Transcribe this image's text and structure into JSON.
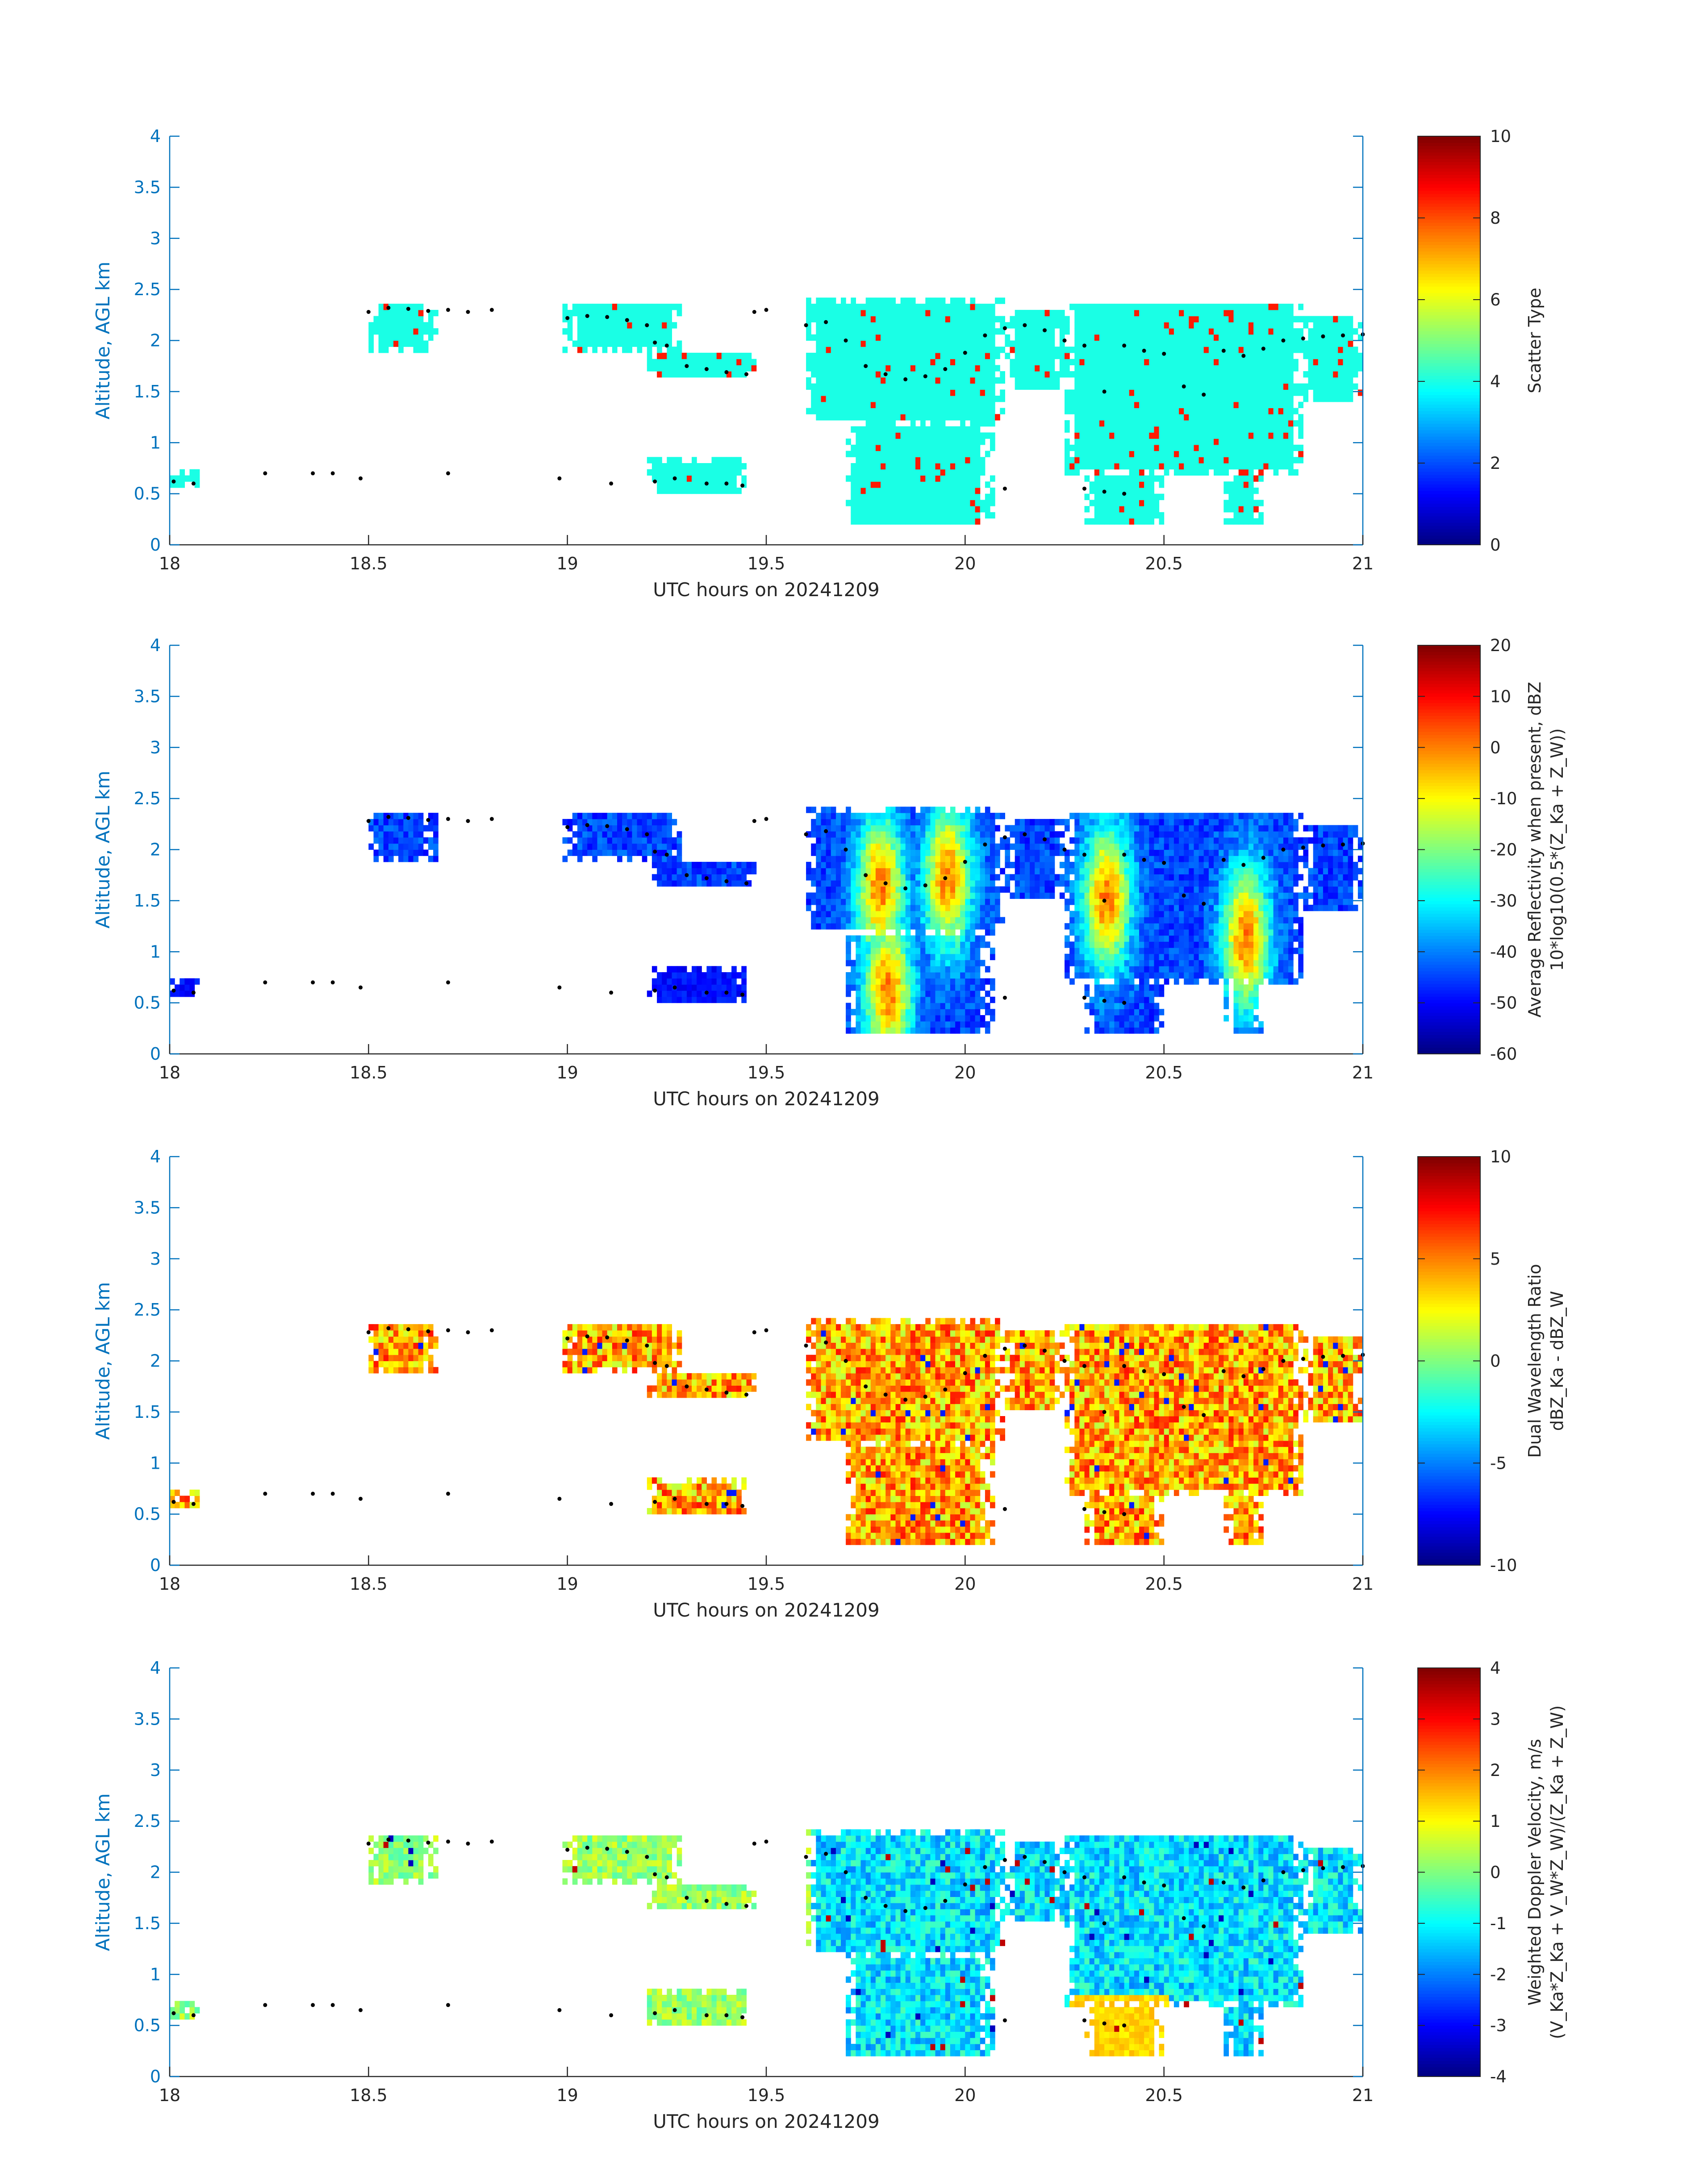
{
  "chart_data": [
    {
      "type": "heatmap",
      "xlabel": "UTC hours on 20241209",
      "ylabel": "Altitude, AGL km",
      "xlim": [
        18,
        21
      ],
      "ylim": [
        0,
        4
      ],
      "x_ticks": [
        "18",
        "18.5",
        "19",
        "19.5",
        "20",
        "20.5",
        "21"
      ],
      "y_ticks": [
        "0",
        "0.5",
        "1",
        "1.5",
        "2",
        "2.5",
        "3",
        "3.5",
        "4"
      ],
      "colorbar": {
        "label_lines": [
          "Scatter Type"
        ],
        "range": [
          0,
          10
        ],
        "ticks": [
          "0",
          "2",
          "4",
          "6",
          "8",
          "10"
        ],
        "colormap": "jet"
      },
      "field": "scatter_type",
      "dominant_value": 4,
      "secondary_value": 8.5
    },
    {
      "type": "heatmap",
      "xlabel": "UTC hours on 20241209",
      "ylabel": "Altitude, AGL km",
      "xlim": [
        18,
        21
      ],
      "ylim": [
        0,
        4
      ],
      "x_ticks": [
        "18",
        "18.5",
        "19",
        "19.5",
        "20",
        "20.5",
        "21"
      ],
      "y_ticks": [
        "0",
        "0.5",
        "1",
        "1.5",
        "2",
        "2.5",
        "3",
        "3.5",
        "4"
      ],
      "colorbar": {
        "label_lines": [
          "Average Reflectivity when present, dBZ",
          "10*log10(0.5*(Z_Ka + Z_W))"
        ],
        "range": [
          -60,
          20
        ],
        "ticks": [
          "-60",
          "-50",
          "-40",
          "-30",
          "-20",
          "-10",
          "0",
          "10",
          "20"
        ],
        "colormap": "jet"
      },
      "field": "reflectivity"
    },
    {
      "type": "heatmap",
      "xlabel": "UTC hours on 20241209",
      "ylabel": "Altitude, AGL km",
      "xlim": [
        18,
        21
      ],
      "ylim": [
        0,
        4
      ],
      "x_ticks": [
        "18",
        "18.5",
        "19",
        "19.5",
        "20",
        "20.5",
        "21"
      ],
      "y_ticks": [
        "0",
        "0.5",
        "1",
        "1.5",
        "2",
        "2.5",
        "3",
        "3.5",
        "4"
      ],
      "colorbar": {
        "label_lines": [
          "Dual Wavelength Ratio",
          "dBZ_Ka - dBZ_W"
        ],
        "range": [
          -10,
          10
        ],
        "ticks": [
          "-10",
          "-5",
          "0",
          "5",
          "10"
        ],
        "colormap": "jet"
      },
      "field": "dwr"
    },
    {
      "type": "heatmap",
      "xlabel": "UTC hours on 20241209",
      "ylabel": "Altitude, AGL km",
      "xlim": [
        18,
        21
      ],
      "ylim": [
        0,
        4
      ],
      "x_ticks": [
        "18",
        "18.5",
        "19",
        "19.5",
        "20",
        "20.5",
        "21"
      ],
      "y_ticks": [
        "0",
        "0.5",
        "1",
        "1.5",
        "2",
        "2.5",
        "3",
        "3.5",
        "4"
      ],
      "colorbar": {
        "label_lines": [
          "Weighted Doppler Velocity, m/s",
          "(V_Ka*Z_Ka + V_W*Z_W)/(Z_Ka + Z_W)"
        ],
        "range": [
          -4,
          4
        ],
        "ticks": [
          "-4",
          "-3",
          "-2",
          "-1",
          "0",
          "1",
          "2",
          "3",
          "4"
        ],
        "colormap": "jet"
      },
      "field": "doppler_velocity"
    }
  ],
  "echo_regions_km": [
    {
      "x0": 18.5,
      "x1": 18.67,
      "y0": 1.9,
      "y1": 2.38
    },
    {
      "x0": 18.99,
      "x1": 19.29,
      "y0": 1.9,
      "y1": 2.38
    },
    {
      "x0": 19.2,
      "x1": 19.48,
      "y0": 1.62,
      "y1": 1.9
    },
    {
      "x0": 19.6,
      "x1": 20.1,
      "y0": 1.2,
      "y1": 2.4
    },
    {
      "x0": 19.7,
      "x1": 20.07,
      "y0": 0.2,
      "y1": 1.2
    },
    {
      "x0": 20.1,
      "x1": 20.25,
      "y0": 1.5,
      "y1": 2.33
    },
    {
      "x0": 20.25,
      "x1": 20.85,
      "y0": 0.7,
      "y1": 2.38
    },
    {
      "x0": 20.3,
      "x1": 20.5,
      "y0": 0.2,
      "y1": 0.7
    },
    {
      "x0": 20.65,
      "x1": 20.75,
      "y0": 0.2,
      "y1": 0.8
    },
    {
      "x0": 20.85,
      "x1": 21.0,
      "y0": 1.4,
      "y1": 2.25
    },
    {
      "x0": 19.2,
      "x1": 19.45,
      "y0": 0.5,
      "y1": 0.85
    },
    {
      "x0": 18.0,
      "x1": 18.07,
      "y0": 0.55,
      "y1": 0.72
    }
  ],
  "cloud_top_markers_km": [
    {
      "t": 18.5,
      "z": 2.28
    },
    {
      "t": 18.55,
      "z": 2.32
    },
    {
      "t": 18.6,
      "z": 2.31
    },
    {
      "t": 18.65,
      "z": 2.29
    },
    {
      "t": 18.7,
      "z": 2.3
    },
    {
      "t": 18.75,
      "z": 2.28
    },
    {
      "t": 18.81,
      "z": 2.3
    },
    {
      "t": 19.0,
      "z": 2.22
    },
    {
      "t": 19.05,
      "z": 2.24
    },
    {
      "t": 19.1,
      "z": 2.23
    },
    {
      "t": 19.15,
      "z": 2.2
    },
    {
      "t": 19.2,
      "z": 2.15
    },
    {
      "t": 19.22,
      "z": 1.98
    },
    {
      "t": 19.25,
      "z": 1.95
    },
    {
      "t": 19.3,
      "z": 1.75
    },
    {
      "t": 19.35,
      "z": 1.72
    },
    {
      "t": 19.4,
      "z": 1.69
    },
    {
      "t": 19.45,
      "z": 1.67
    },
    {
      "t": 19.47,
      "z": 2.28
    },
    {
      "t": 19.5,
      "z": 2.3
    },
    {
      "t": 19.6,
      "z": 2.15
    },
    {
      "t": 19.65,
      "z": 2.18
    },
    {
      "t": 19.7,
      "z": 2.0
    },
    {
      "t": 19.75,
      "z": 1.75
    },
    {
      "t": 19.8,
      "z": 1.67
    },
    {
      "t": 19.85,
      "z": 1.62
    },
    {
      "t": 19.9,
      "z": 1.65
    },
    {
      "t": 19.95,
      "z": 1.72
    },
    {
      "t": 20.0,
      "z": 1.88
    },
    {
      "t": 20.05,
      "z": 2.05
    },
    {
      "t": 20.1,
      "z": 2.12
    },
    {
      "t": 20.15,
      "z": 2.15
    },
    {
      "t": 20.2,
      "z": 2.1
    },
    {
      "t": 20.25,
      "z": 2.0
    },
    {
      "t": 20.3,
      "z": 1.95
    },
    {
      "t": 20.35,
      "z": 1.5
    },
    {
      "t": 20.4,
      "z": 1.95
    },
    {
      "t": 20.45,
      "z": 1.9
    },
    {
      "t": 20.5,
      "z": 1.87
    },
    {
      "t": 20.55,
      "z": 1.55
    },
    {
      "t": 20.6,
      "z": 1.47
    },
    {
      "t": 20.65,
      "z": 1.9
    },
    {
      "t": 20.7,
      "z": 1.85
    },
    {
      "t": 20.75,
      "z": 1.92
    },
    {
      "t": 20.8,
      "z": 2.0
    },
    {
      "t": 20.85,
      "z": 2.02
    },
    {
      "t": 20.9,
      "z": 2.04
    },
    {
      "t": 20.95,
      "z": 2.05
    },
    {
      "t": 21.0,
      "z": 2.06
    }
  ],
  "base_markers_km": [
    {
      "t": 18.01,
      "z": 0.62
    },
    {
      "t": 18.06,
      "z": 0.6
    },
    {
      "t": 18.24,
      "z": 0.7
    },
    {
      "t": 18.36,
      "z": 0.7
    },
    {
      "t": 18.41,
      "z": 0.7
    },
    {
      "t": 18.48,
      "z": 0.65
    },
    {
      "t": 18.7,
      "z": 0.7
    },
    {
      "t": 18.98,
      "z": 0.65
    },
    {
      "t": 19.11,
      "z": 0.6
    },
    {
      "t": 19.22,
      "z": 0.62
    },
    {
      "t": 19.27,
      "z": 0.65
    },
    {
      "t": 19.35,
      "z": 0.6
    },
    {
      "t": 19.4,
      "z": 0.6
    },
    {
      "t": 19.44,
      "z": 0.58
    },
    {
      "t": 20.1,
      "z": 0.55
    },
    {
      "t": 20.3,
      "z": 0.55
    },
    {
      "t": 20.35,
      "z": 0.52
    },
    {
      "t": 20.4,
      "z": 0.5
    }
  ]
}
